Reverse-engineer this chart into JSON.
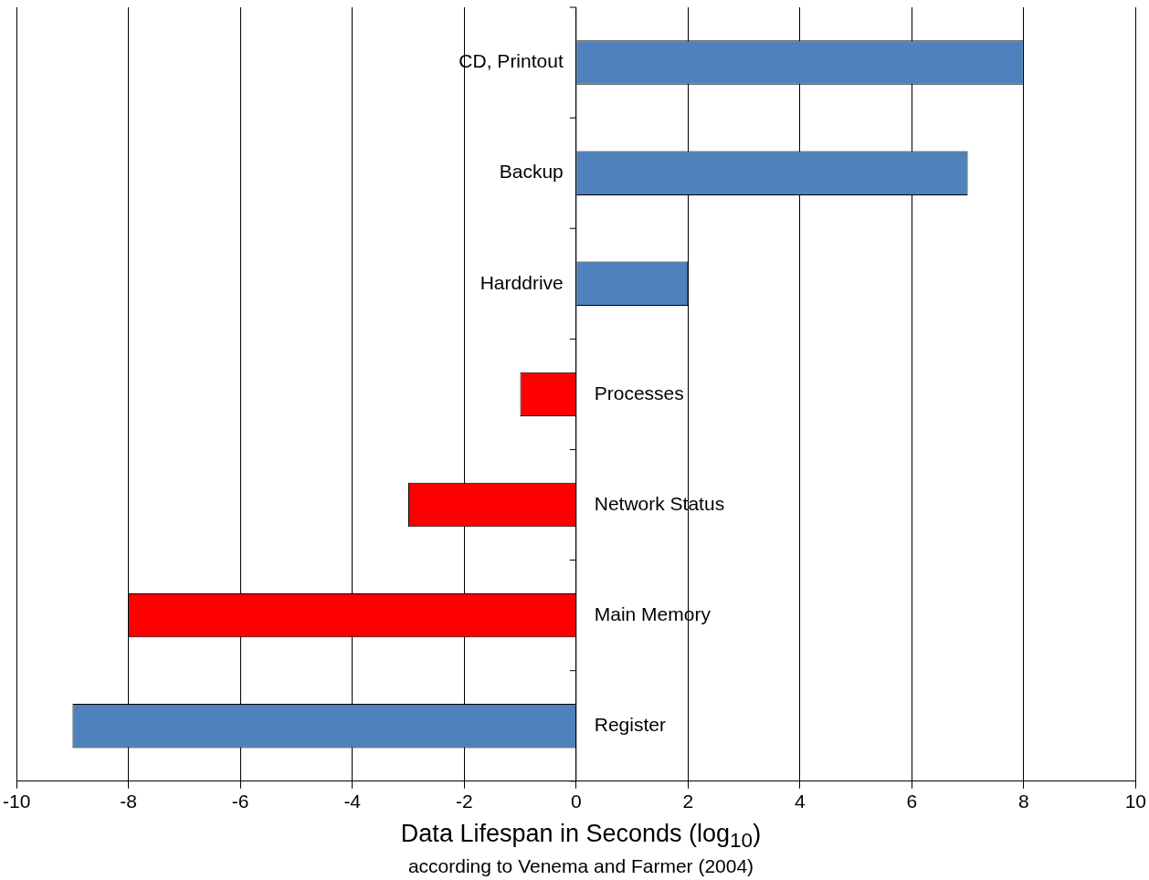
{
  "chart_data": {
    "type": "bar",
    "orientation": "horizontal",
    "xlabel": "Data Lifespan in Seconds (log$_{10}$)",
    "annotations": [
      "according to Venema and Farmer (2004)"
    ],
    "categories": [
      "CD, Printout",
      "Backup",
      "Harddrive",
      "Processes",
      "Network Status",
      "Main Memory",
      "Register"
    ],
    "values": [
      8,
      7,
      2,
      -1,
      -3,
      -8,
      -9
    ],
    "colors": [
      "#4f81bd",
      "#4f81bd",
      "#4f81bd",
      "#ff0000",
      "#ff0000",
      "#ff0000",
      "#4f81bd"
    ],
    "xlim": [
      -10,
      10
    ],
    "xticks": [
      -10,
      -8,
      -6,
      -4,
      -2,
      0,
      2,
      4,
      6,
      8,
      10
    ],
    "grid": "x",
    "legend": false
  }
}
